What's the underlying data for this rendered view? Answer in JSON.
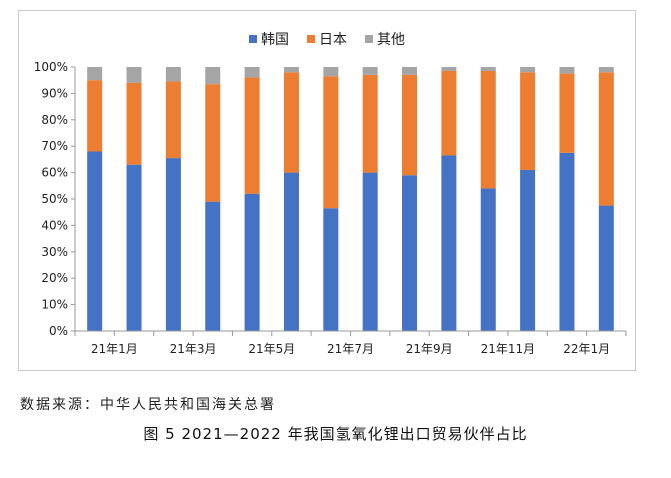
{
  "chart_data": {
    "type": "bar",
    "stacked": true,
    "categories": [
      "21年1月",
      "21年2月",
      "21年3月",
      "21年4月",
      "21年5月",
      "21年6月",
      "21年7月",
      "21年8月",
      "21年9月",
      "21年10月",
      "21年11月",
      "21年12月",
      "22年1月",
      "22年2月"
    ],
    "x_tick_labels": [
      "21年1月",
      "21年3月",
      "21年5月",
      "21年7月",
      "21年9月",
      "21年11月",
      "22年1月"
    ],
    "series": [
      {
        "name": "韩国",
        "color": "#4472C4",
        "values": [
          68,
          63,
          65.5,
          49,
          52,
          60,
          46.5,
          60,
          59,
          66.5,
          54,
          61,
          67.5,
          47.5
        ]
      },
      {
        "name": "日本",
        "color": "#ED7D31",
        "values": [
          27,
          31,
          29,
          44.5,
          44,
          38,
          50,
          37,
          38,
          32,
          44.5,
          37,
          30,
          50.5
        ]
      },
      {
        "name": "其他",
        "color": "#A5A5A5",
        "values": [
          5,
          6,
          5.5,
          6.5,
          4,
          2,
          3.5,
          3,
          3,
          1.5,
          1.5,
          2,
          2.5,
          2
        ]
      }
    ],
    "y_ticks": [
      "0%",
      "10%",
      "20%",
      "30%",
      "40%",
      "50%",
      "60%",
      "70%",
      "80%",
      "90%",
      "100%"
    ],
    "ylim": [
      0,
      100
    ],
    "legend_position": "top-center",
    "grid": false
  },
  "source_note": "数据来源：中华人民共和国海关总署",
  "figure_caption": "图 5  2021—2022 年我国氢氧化锂出口贸易伙伴占比"
}
